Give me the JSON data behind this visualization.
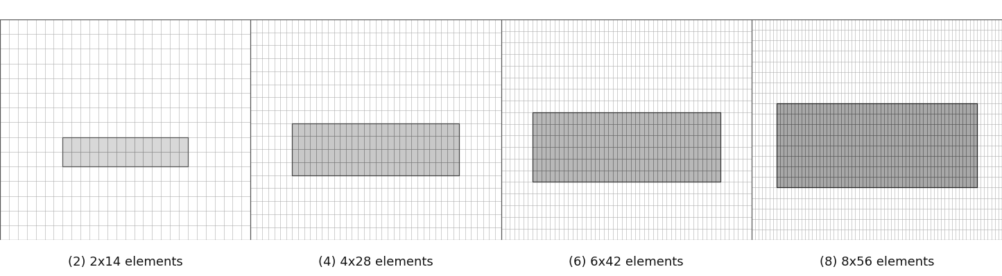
{
  "background_color": "#ffffff",
  "figure_width": 14.45,
  "figure_height": 3.98,
  "meshes": [
    {
      "label": "(2) 2x14 elements",
      "rows": 2,
      "cols": 14,
      "fill_color": "#d8d8d8",
      "edge_color": "#555555",
      "grid_color": "#888888",
      "outer_line_color": "#aaaaaa",
      "outer_cols": 7,
      "outer_rows_above": 8,
      "outer_rows_below": 5
    },
    {
      "label": "(4) 4x28 elements",
      "rows": 4,
      "cols": 28,
      "fill_color": "#c8c8c8",
      "edge_color": "#444444",
      "grid_color": "#777777",
      "outer_line_color": "#aaaaaa",
      "outer_cols": 7,
      "outer_rows_above": 8,
      "outer_rows_below": 5
    },
    {
      "label": "(6) 6x42 elements",
      "rows": 6,
      "cols": 42,
      "fill_color": "#b8b8b8",
      "edge_color": "#333333",
      "grid_color": "#666666",
      "outer_line_color": "#aaaaaa",
      "outer_cols": 7,
      "outer_rows_above": 8,
      "outer_rows_below": 5
    },
    {
      "label": "(8) 8x56 elements",
      "rows": 8,
      "cols": 56,
      "fill_color": "#a8a8a8",
      "edge_color": "#222222",
      "grid_color": "#555555",
      "outer_line_color": "#aaaaaa",
      "outer_cols": 7,
      "outer_rows_above": 8,
      "outer_rows_below": 5
    }
  ],
  "label_fontsize": 13,
  "label_color": "#111111",
  "border_color": "#555555"
}
